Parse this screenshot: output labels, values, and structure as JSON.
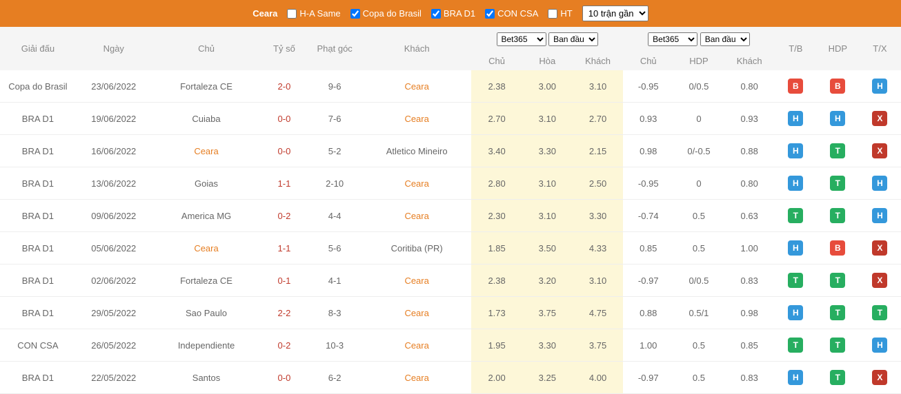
{
  "header": {
    "team": "Ceara",
    "filters": [
      {
        "label": "H-A Same",
        "checked": false
      },
      {
        "label": "Copa do Brasil",
        "checked": true
      },
      {
        "label": "BRA D1",
        "checked": true
      },
      {
        "label": "CON CSA",
        "checked": true
      },
      {
        "label": "HT",
        "checked": false
      }
    ],
    "matches_select": "10 trận gần"
  },
  "columns": {
    "league": "Giải đấu",
    "date": "Ngày",
    "home": "Chủ",
    "score": "Tỷ số",
    "corner": "Phạt góc",
    "away": "Khách",
    "bookmaker1": "Bet365",
    "line1": "Ban đầu",
    "sub_home1": "Chủ",
    "sub_draw": "Hòa",
    "sub_away1": "Khách",
    "bookmaker2": "Bet365",
    "line2": "Ban đầu",
    "sub_home2": "Chủ",
    "sub_hdp": "HDP",
    "sub_away2": "Khách",
    "tb": "T/B",
    "hdp": "HDP",
    "tx": "T/X"
  },
  "rows": [
    {
      "league": "Copa do Brasil",
      "date": "23/06/2022",
      "home": "Fortaleza CE",
      "home_orange": false,
      "score": "2-0",
      "corner": "9-6",
      "away": "Ceara",
      "away_orange": true,
      "o1": "2.38",
      "o2": "3.00",
      "o3": "3.10",
      "o4": "-0.95",
      "o5": "0/0.5",
      "o6": "0.80",
      "b1": "B",
      "b2": "B",
      "b3": "H"
    },
    {
      "league": "BRA D1",
      "date": "19/06/2022",
      "home": "Cuiaba",
      "home_orange": false,
      "score": "0-0",
      "corner": "7-6",
      "away": "Ceara",
      "away_orange": true,
      "o1": "2.70",
      "o2": "3.10",
      "o3": "2.70",
      "o4": "0.93",
      "o5": "0",
      "o6": "0.93",
      "b1": "H",
      "b2": "H",
      "b3": "X"
    },
    {
      "league": "BRA D1",
      "date": "16/06/2022",
      "home": "Ceara",
      "home_orange": true,
      "score": "0-0",
      "corner": "5-2",
      "away": "Atletico Mineiro",
      "away_orange": false,
      "o1": "3.40",
      "o2": "3.30",
      "o3": "2.15",
      "o4": "0.98",
      "o5": "0/-0.5",
      "o6": "0.88",
      "b1": "H",
      "b2": "T",
      "b3": "X"
    },
    {
      "league": "BRA D1",
      "date": "13/06/2022",
      "home": "Goias",
      "home_orange": false,
      "score": "1-1",
      "corner": "2-10",
      "away": "Ceara",
      "away_orange": true,
      "o1": "2.80",
      "o2": "3.10",
      "o3": "2.50",
      "o4": "-0.95",
      "o5": "0",
      "o6": "0.80",
      "b1": "H",
      "b2": "T",
      "b3": "H"
    },
    {
      "league": "BRA D1",
      "date": "09/06/2022",
      "home": "America MG",
      "home_orange": false,
      "score": "0-2",
      "corner": "4-4",
      "away": "Ceara",
      "away_orange": true,
      "o1": "2.30",
      "o2": "3.10",
      "o3": "3.30",
      "o4": "-0.74",
      "o5": "0.5",
      "o6": "0.63",
      "b1": "T",
      "b2": "T",
      "b3": "H"
    },
    {
      "league": "BRA D1",
      "date": "05/06/2022",
      "home": "Ceara",
      "home_orange": true,
      "score": "1-1",
      "corner": "5-6",
      "away": "Coritiba (PR)",
      "away_orange": false,
      "o1": "1.85",
      "o2": "3.50",
      "o3": "4.33",
      "o4": "0.85",
      "o5": "0.5",
      "o6": "1.00",
      "b1": "H",
      "b2": "B",
      "b3": "X"
    },
    {
      "league": "BRA D1",
      "date": "02/06/2022",
      "home": "Fortaleza CE",
      "home_orange": false,
      "score": "0-1",
      "corner": "4-1",
      "away": "Ceara",
      "away_orange": true,
      "o1": "2.38",
      "o2": "3.20",
      "o3": "3.10",
      "o4": "-0.97",
      "o5": "0/0.5",
      "o6": "0.83",
      "b1": "T",
      "b2": "T",
      "b3": "X"
    },
    {
      "league": "BRA D1",
      "date": "29/05/2022",
      "home": "Sao Paulo",
      "home_orange": false,
      "score": "2-2",
      "corner": "8-3",
      "away": "Ceara",
      "away_orange": true,
      "o1": "1.73",
      "o2": "3.75",
      "o3": "4.75",
      "o4": "0.88",
      "o5": "0.5/1",
      "o6": "0.98",
      "b1": "H",
      "b2": "T",
      "b3": "T"
    },
    {
      "league": "CON CSA",
      "date": "26/05/2022",
      "home": "Independiente",
      "home_orange": false,
      "score": "0-2",
      "corner": "10-3",
      "away": "Ceara",
      "away_orange": true,
      "o1": "1.95",
      "o2": "3.30",
      "o3": "3.75",
      "o4": "1.00",
      "o5": "0.5",
      "o6": "0.85",
      "b1": "T",
      "b2": "T",
      "b3": "H"
    },
    {
      "league": "BRA D1",
      "date": "22/05/2022",
      "home": "Santos",
      "home_orange": false,
      "score": "0-0",
      "corner": "6-2",
      "away": "Ceara",
      "away_orange": true,
      "o1": "2.00",
      "o2": "3.25",
      "o3": "4.00",
      "o4": "-0.97",
      "o5": "0.5",
      "o6": "0.83",
      "b1": "H",
      "b2": "T",
      "b3": "X"
    }
  ]
}
